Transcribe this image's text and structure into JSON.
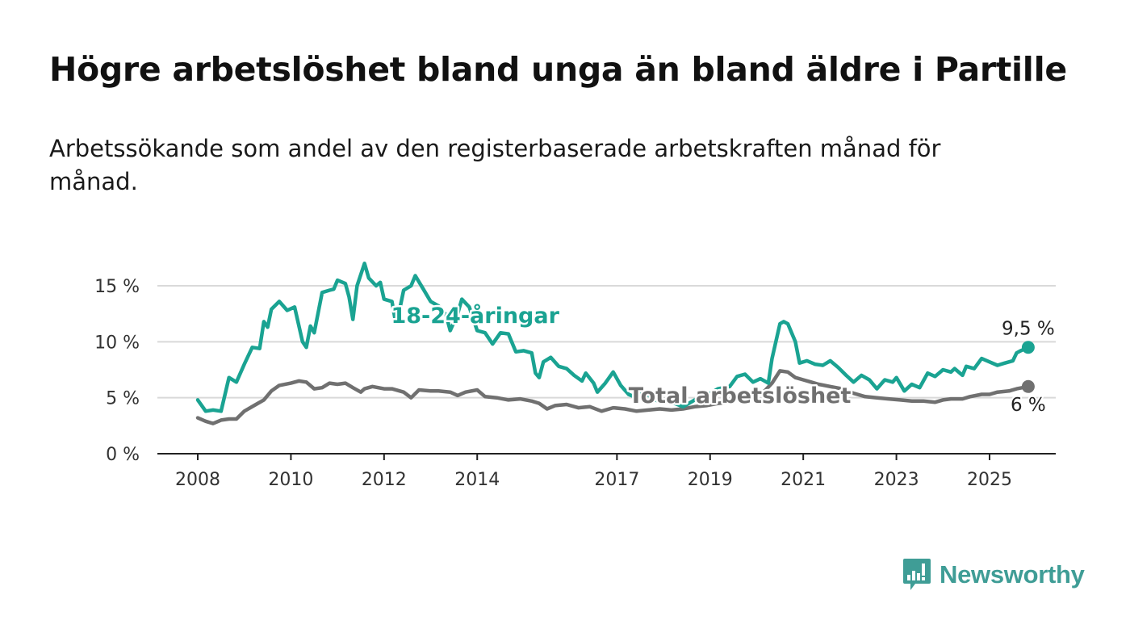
{
  "title": "Högre arbetslöshet bland unga än bland äldre i Partille",
  "subtitle": "Arbetssökande som andel av den registerbaserade arbetskraften månad för månad.",
  "brand": {
    "name": "Newsworthy",
    "color": "#3f9d96"
  },
  "chart_data": {
    "type": "line",
    "y_unit": "%",
    "ylim": [
      0,
      17.5
    ],
    "y_ticks": [
      {
        "value": 0,
        "label": "0 %"
      },
      {
        "value": 5,
        "label": "5 %"
      },
      {
        "value": 10,
        "label": "10 %"
      },
      {
        "value": 15,
        "label": "15 %"
      }
    ],
    "xlim": [
      2007.4,
      2026.7
    ],
    "x_ticks": [
      {
        "value": 2008,
        "label": "2008"
      },
      {
        "value": 2010,
        "label": "2010"
      },
      {
        "value": 2012,
        "label": "2012"
      },
      {
        "value": 2014,
        "label": "2014"
      },
      {
        "value": 2017,
        "label": "2017"
      },
      {
        "value": 2019,
        "label": "2019"
      },
      {
        "value": 2021,
        "label": "2021"
      },
      {
        "value": 2023,
        "label": "2023"
      },
      {
        "value": 2025,
        "label": "2025"
      }
    ],
    "grid": true,
    "legend": "inline labels",
    "series": [
      {
        "name": "18-24-åringar",
        "color": "#1aa392",
        "end_label": "9,5 %",
        "points": [
          [
            2008.0,
            4.8
          ],
          [
            2008.17,
            3.8
          ],
          [
            2008.33,
            3.9
          ],
          [
            2008.5,
            3.8
          ],
          [
            2008.67,
            6.8
          ],
          [
            2008.83,
            6.4
          ],
          [
            2009.0,
            8.0
          ],
          [
            2009.17,
            9.5
          ],
          [
            2009.33,
            9.4
          ],
          [
            2009.42,
            11.8
          ],
          [
            2009.5,
            11.3
          ],
          [
            2009.58,
            12.9
          ],
          [
            2009.75,
            13.6
          ],
          [
            2009.92,
            12.8
          ],
          [
            2010.08,
            13.1
          ],
          [
            2010.25,
            10.0
          ],
          [
            2010.33,
            9.5
          ],
          [
            2010.42,
            11.4
          ],
          [
            2010.5,
            10.8
          ],
          [
            2010.67,
            14.4
          ],
          [
            2010.83,
            14.6
          ],
          [
            2010.92,
            14.7
          ],
          [
            2011.0,
            15.5
          ],
          [
            2011.17,
            15.2
          ],
          [
            2011.25,
            14.0
          ],
          [
            2011.33,
            12.0
          ],
          [
            2011.42,
            15.0
          ],
          [
            2011.58,
            17.0
          ],
          [
            2011.67,
            15.7
          ],
          [
            2011.83,
            15.0
          ],
          [
            2011.92,
            15.3
          ],
          [
            2012.0,
            13.8
          ],
          [
            2012.17,
            13.6
          ],
          [
            2012.25,
            11.7
          ],
          [
            2012.33,
            12.8
          ],
          [
            2012.42,
            14.6
          ],
          [
            2012.58,
            15.0
          ],
          [
            2012.67,
            15.9
          ],
          [
            2012.83,
            14.8
          ],
          [
            2013.0,
            13.6
          ],
          [
            2013.17,
            13.2
          ],
          [
            2013.33,
            12.4
          ],
          [
            2013.42,
            11.0
          ],
          [
            2013.58,
            12.5
          ],
          [
            2013.67,
            13.8
          ],
          [
            2013.83,
            13.1
          ],
          [
            2014.0,
            11.0
          ],
          [
            2014.17,
            10.8
          ],
          [
            2014.33,
            9.8
          ],
          [
            2014.5,
            10.8
          ],
          [
            2014.67,
            10.7
          ],
          [
            2014.83,
            9.1
          ],
          [
            2015.0,
            9.2
          ],
          [
            2015.17,
            9.0
          ],
          [
            2015.25,
            7.2
          ],
          [
            2015.33,
            6.8
          ],
          [
            2015.42,
            8.2
          ],
          [
            2015.58,
            8.6
          ],
          [
            2015.75,
            7.8
          ],
          [
            2015.92,
            7.6
          ],
          [
            2016.08,
            7.0
          ],
          [
            2016.25,
            6.5
          ],
          [
            2016.33,
            7.2
          ],
          [
            2016.5,
            6.3
          ],
          [
            2016.58,
            5.5
          ],
          [
            2016.75,
            6.3
          ],
          [
            2016.92,
            7.3
          ],
          [
            2017.08,
            6.1
          ],
          [
            2017.25,
            5.3
          ],
          [
            2017.42,
            5.0
          ],
          [
            2017.58,
            5.5
          ],
          [
            2017.75,
            5.0
          ],
          [
            2017.92,
            4.6
          ],
          [
            2018.17,
            4.6
          ],
          [
            2018.42,
            4.2
          ],
          [
            2018.67,
            4.8
          ],
          [
            2018.92,
            5.2
          ],
          [
            2019.17,
            5.8
          ],
          [
            2019.42,
            6.0
          ],
          [
            2019.58,
            6.9
          ],
          [
            2019.75,
            7.1
          ],
          [
            2019.92,
            6.4
          ],
          [
            2020.08,
            6.7
          ],
          [
            2020.25,
            6.3
          ],
          [
            2020.33,
            8.5
          ],
          [
            2020.5,
            11.6
          ],
          [
            2020.58,
            11.8
          ],
          [
            2020.67,
            11.6
          ],
          [
            2020.83,
            10.0
          ],
          [
            2020.92,
            8.1
          ],
          [
            2021.08,
            8.3
          ],
          [
            2021.25,
            8.0
          ],
          [
            2021.42,
            7.9
          ],
          [
            2021.58,
            8.3
          ],
          [
            2021.75,
            7.7
          ],
          [
            2021.92,
            7.0
          ],
          [
            2022.08,
            6.4
          ],
          [
            2022.25,
            7.0
          ],
          [
            2022.42,
            6.6
          ],
          [
            2022.58,
            5.8
          ],
          [
            2022.75,
            6.6
          ],
          [
            2022.92,
            6.4
          ],
          [
            2023.0,
            6.8
          ],
          [
            2023.17,
            5.6
          ],
          [
            2023.33,
            6.2
          ],
          [
            2023.5,
            5.9
          ],
          [
            2023.67,
            7.2
          ],
          [
            2023.83,
            6.9
          ],
          [
            2024.0,
            7.5
          ],
          [
            2024.17,
            7.3
          ],
          [
            2024.25,
            7.6
          ],
          [
            2024.42,
            7.0
          ],
          [
            2024.5,
            7.8
          ],
          [
            2024.67,
            7.6
          ],
          [
            2024.83,
            8.5
          ],
          [
            2025.0,
            8.2
          ],
          [
            2025.17,
            7.9
          ],
          [
            2025.33,
            8.1
          ],
          [
            2025.5,
            8.3
          ],
          [
            2025.58,
            9.0
          ],
          [
            2025.67,
            9.2
          ],
          [
            2025.83,
            9.5
          ]
        ]
      },
      {
        "name": "Total arbetslöshet",
        "color": "#707070",
        "end_label": "6 %",
        "points": [
          [
            2008.0,
            3.2
          ],
          [
            2008.17,
            2.9
          ],
          [
            2008.33,
            2.7
          ],
          [
            2008.5,
            3.0
          ],
          [
            2008.67,
            3.1
          ],
          [
            2008.83,
            3.1
          ],
          [
            2009.0,
            3.8
          ],
          [
            2009.25,
            4.4
          ],
          [
            2009.42,
            4.8
          ],
          [
            2009.58,
            5.6
          ],
          [
            2009.75,
            6.1
          ],
          [
            2010.0,
            6.3
          ],
          [
            2010.17,
            6.5
          ],
          [
            2010.33,
            6.4
          ],
          [
            2010.5,
            5.8
          ],
          [
            2010.67,
            5.9
          ],
          [
            2010.83,
            6.3
          ],
          [
            2011.0,
            6.2
          ],
          [
            2011.17,
            6.3
          ],
          [
            2011.33,
            5.9
          ],
          [
            2011.5,
            5.5
          ],
          [
            2011.58,
            5.8
          ],
          [
            2011.75,
            6.0
          ],
          [
            2012.0,
            5.8
          ],
          [
            2012.17,
            5.8
          ],
          [
            2012.42,
            5.5
          ],
          [
            2012.58,
            5.0
          ],
          [
            2012.75,
            5.7
          ],
          [
            2013.0,
            5.6
          ],
          [
            2013.17,
            5.6
          ],
          [
            2013.42,
            5.5
          ],
          [
            2013.58,
            5.2
          ],
          [
            2013.75,
            5.5
          ],
          [
            2014.0,
            5.7
          ],
          [
            2014.17,
            5.1
          ],
          [
            2014.42,
            5.0
          ],
          [
            2014.67,
            4.8
          ],
          [
            2014.92,
            4.9
          ],
          [
            2015.17,
            4.7
          ],
          [
            2015.33,
            4.5
          ],
          [
            2015.5,
            4.0
          ],
          [
            2015.67,
            4.3
          ],
          [
            2015.92,
            4.4
          ],
          [
            2016.17,
            4.1
          ],
          [
            2016.42,
            4.2
          ],
          [
            2016.67,
            3.8
          ],
          [
            2016.92,
            4.1
          ],
          [
            2017.17,
            4.0
          ],
          [
            2017.42,
            3.8
          ],
          [
            2017.67,
            3.9
          ],
          [
            2017.92,
            4.0
          ],
          [
            2018.17,
            3.9
          ],
          [
            2018.42,
            4.0
          ],
          [
            2018.67,
            4.2
          ],
          [
            2018.92,
            4.3
          ],
          [
            2019.17,
            4.5
          ],
          [
            2019.42,
            4.6
          ],
          [
            2019.67,
            5.0
          ],
          [
            2019.92,
            5.2
          ],
          [
            2020.17,
            5.6
          ],
          [
            2020.33,
            6.3
          ],
          [
            2020.5,
            7.4
          ],
          [
            2020.67,
            7.3
          ],
          [
            2020.83,
            6.8
          ],
          [
            2021.0,
            6.6
          ],
          [
            2021.17,
            6.4
          ],
          [
            2021.33,
            6.2
          ],
          [
            2021.58,
            6.0
          ],
          [
            2021.83,
            5.8
          ],
          [
            2022.08,
            5.4
          ],
          [
            2022.33,
            5.1
          ],
          [
            2022.58,
            5.0
          ],
          [
            2022.83,
            4.9
          ],
          [
            2023.08,
            4.8
          ],
          [
            2023.33,
            4.7
          ],
          [
            2023.58,
            4.7
          ],
          [
            2023.83,
            4.6
          ],
          [
            2024.0,
            4.8
          ],
          [
            2024.17,
            4.9
          ],
          [
            2024.42,
            4.9
          ],
          [
            2024.58,
            5.1
          ],
          [
            2024.83,
            5.3
          ],
          [
            2025.0,
            5.3
          ],
          [
            2025.17,
            5.5
          ],
          [
            2025.42,
            5.6
          ],
          [
            2025.58,
            5.8
          ],
          [
            2025.83,
            6.0
          ]
        ]
      }
    ]
  }
}
